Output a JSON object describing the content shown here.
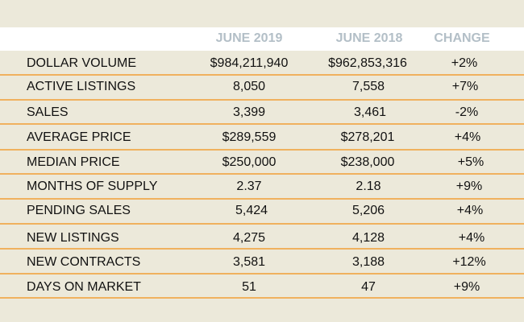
{
  "columns": {
    "current": "JUNE 2019",
    "previous": "JUNE 2018",
    "change": "CHANGE"
  },
  "rows": [
    {
      "label": "DOLLAR VOLUME",
      "current": "$984,211,940",
      "previous": "$962,853,316",
      "change": "+2%"
    },
    {
      "label": "ACTIVE LISTINGS",
      "current": "8,050",
      "previous": "7,558",
      "change": "+7%"
    },
    {
      "label": "SALES",
      "current": "3,399",
      "previous": "3,461",
      "change": "-2%"
    },
    {
      "label": "AVERAGE PRICE",
      "current": "$289,559",
      "previous": "$278,201",
      "change": "+4%"
    },
    {
      "label": "MEDIAN PRICE",
      "current": "$250,000",
      "previous": "$238,000",
      "change": "+5%"
    },
    {
      "label": "MONTHS OF SUPPLY",
      "current": "2.37",
      "previous": "2.18",
      "change": "+9%"
    },
    {
      "label": "PENDING SALES",
      "current": "5,424",
      "previous": "5,206",
      "change": "+4%"
    },
    {
      "label": "NEW LISTINGS",
      "current": "4,275",
      "previous": "4,128",
      "change": "+4%"
    },
    {
      "label": "NEW CONTRACTS",
      "current": "3,581",
      "previous": "3,188",
      "change": "+12%"
    },
    {
      "label": "DAYS ON MARKET",
      "current": "51",
      "previous": "47",
      "change": "+9%"
    }
  ],
  "colors": {
    "background": "#ece9da",
    "header_background": "#ffffff",
    "header_text": "#b3bfc7",
    "separator": "#f0b15e",
    "text": "#111111"
  }
}
